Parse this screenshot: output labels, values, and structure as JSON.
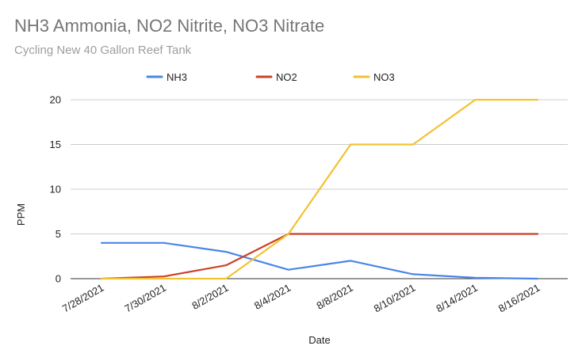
{
  "chart_data": {
    "type": "line",
    "title": "NH3 Ammonia, NO2 Nitrite, NO3 Nitrate",
    "subtitle": "Cycling New 40 Gallon Reef Tank",
    "xlabel": "Date",
    "ylabel": "PPM",
    "categories": [
      "7/28/2021",
      "7/30/2021",
      "8/2/2021",
      "8/4/2021",
      "8/8/2021",
      "8/10/2021",
      "8/14/2021",
      "8/16/2021"
    ],
    "ylim": [
      0,
      20
    ],
    "yticks": [
      0,
      5,
      10,
      15,
      20
    ],
    "grid": true,
    "legend_position": "top",
    "series": [
      {
        "name": "NH3",
        "color": "#4a86e8",
        "values": [
          4,
          4,
          3,
          1,
          2,
          0.5,
          0.1,
          0
        ]
      },
      {
        "name": "NO2",
        "color": "#cc4125",
        "values": [
          0,
          0.25,
          1.5,
          5,
          5,
          5,
          5,
          5
        ]
      },
      {
        "name": "NO3",
        "color": "#f1c232",
        "values": [
          0,
          0,
          0,
          5,
          15,
          15,
          20,
          20
        ]
      }
    ]
  }
}
